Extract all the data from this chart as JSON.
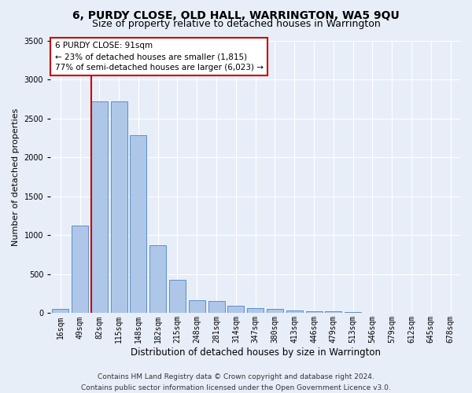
{
  "title": "6, PURDY CLOSE, OLD HALL, WARRINGTON, WA5 9QU",
  "subtitle": "Size of property relative to detached houses in Warrington",
  "xlabel": "Distribution of detached houses by size in Warrington",
  "ylabel": "Number of detached properties",
  "categories": [
    "16sqm",
    "49sqm",
    "82sqm",
    "115sqm",
    "148sqm",
    "182sqm",
    "215sqm",
    "248sqm",
    "281sqm",
    "314sqm",
    "347sqm",
    "380sqm",
    "413sqm",
    "446sqm",
    "479sqm",
    "513sqm",
    "546sqm",
    "579sqm",
    "612sqm",
    "645sqm",
    "678sqm"
  ],
  "values": [
    50,
    1120,
    2720,
    2720,
    2280,
    870,
    430,
    170,
    160,
    95,
    65,
    55,
    35,
    25,
    20,
    10,
    0,
    0,
    0,
    0,
    0
  ],
  "bar_color": "#aec6e8",
  "bar_edge_color": "#5b8fc9",
  "vline_bar_index": 2,
  "vline_color": "#cc0000",
  "annotation_text": "6 PURDY CLOSE: 91sqm\n← 23% of detached houses are smaller (1,815)\n77% of semi-detached houses are larger (6,023) →",
  "annotation_box_color": "#ffffff",
  "annotation_box_edge": "#cc0000",
  "ylim": [
    0,
    3500
  ],
  "yticks": [
    0,
    500,
    1000,
    1500,
    2000,
    2500,
    3000,
    3500
  ],
  "background_color": "#e8eef8",
  "plot_bg_color": "#e8eef8",
  "grid_color": "#ffffff",
  "footer_line1": "Contains HM Land Registry data © Crown copyright and database right 2024.",
  "footer_line2": "Contains public sector information licensed under the Open Government Licence v3.0.",
  "title_fontsize": 10,
  "subtitle_fontsize": 9,
  "xlabel_fontsize": 8.5,
  "ylabel_fontsize": 8,
  "tick_fontsize": 7,
  "footer_fontsize": 6.5
}
